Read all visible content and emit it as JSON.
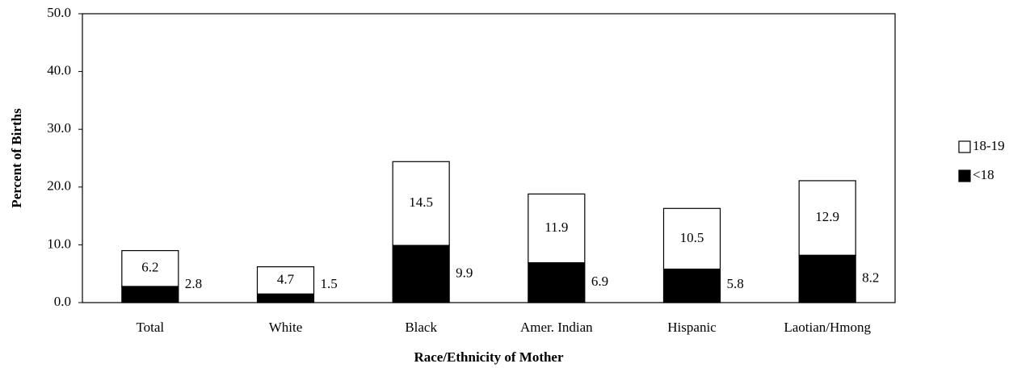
{
  "chart_data": {
    "type": "stacked_bar",
    "x_label": "Race/Ethnicity of Mother",
    "y_label": "Percent of Births",
    "categories": [
      "Total",
      "White",
      "Black",
      "Amer. Indian",
      "Hispanic",
      "Laotian/Hmong"
    ],
    "series": [
      {
        "name": "<18",
        "color": "#000000",
        "values": [
          2.8,
          1.5,
          9.9,
          6.9,
          5.8,
          8.2
        ]
      },
      {
        "name": "18-19",
        "color": "#ffffff",
        "values": [
          6.2,
          4.7,
          14.5,
          11.9,
          10.5,
          12.9
        ]
      }
    ],
    "ylim": [
      0,
      50
    ],
    "yticks": [
      {
        "value": 0,
        "label": "0.0"
      },
      {
        "value": 10,
        "label": "10.0"
      },
      {
        "value": 20,
        "label": "20.0"
      },
      {
        "value": 30,
        "label": "30.0"
      },
      {
        "value": 40,
        "label": "40.0"
      },
      {
        "value": 50,
        "label": "50.0"
      }
    ],
    "legend": "right"
  }
}
